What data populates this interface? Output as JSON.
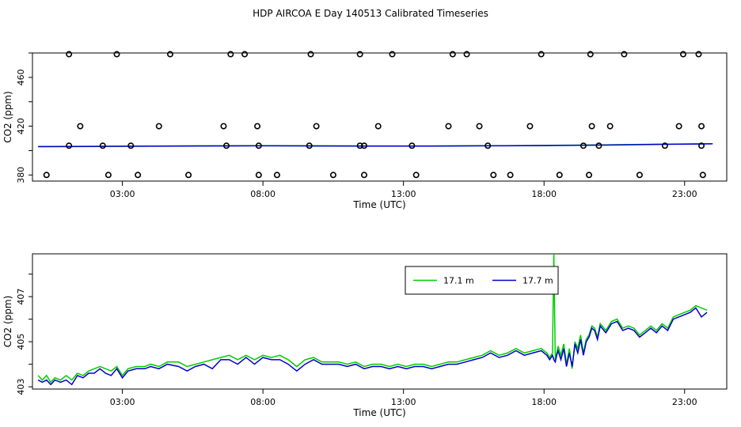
{
  "title": "HDP AIRCOA E  Day 140513  Calibrated Timeseries",
  "chart_data": [
    {
      "type": "scatter",
      "xlabel": "Time (UTC)",
      "ylabel": "CO2 (ppm)",
      "x_ticks": [
        "03:00",
        "08:00",
        "13:00",
        "18:00",
        "23:00"
      ],
      "x_tick_values": [
        3,
        8,
        13,
        18,
        23
      ],
      "y_ticks": [
        "380",
        "420",
        "460"
      ],
      "y_tick_values": [
        380,
        420,
        460
      ],
      "xlim": [
        -0.2,
        24.5
      ],
      "ylim": [
        375,
        480
      ],
      "top_level": 479,
      "upper_level": 420,
      "mid_level": 404,
      "low_level": 380,
      "cal_points_top": [
        1.1,
        2.8,
        4.7,
        6.85,
        7.35,
        9.7,
        11.45,
        12.6,
        14.75,
        15.25,
        17.9,
        19.65,
        20.85,
        22.95,
        23.5
      ],
      "cal_points_upper": [
        1.5,
        4.3,
        6.6,
        7.8,
        9.9,
        12.1,
        14.6,
        15.7,
        17.5,
        19.7,
        20.35,
        22.8,
        23.6
      ],
      "cal_points_mid": [
        1.1,
        3.3,
        2.3,
        6.7,
        7.85,
        9.65,
        11.45,
        11.6,
        13.3,
        16.0,
        19.4,
        19.95,
        22.3,
        23.6
      ],
      "cal_points_low": [
        0.3,
        2.5,
        3.55,
        5.35,
        7.85,
        8.5,
        10.5,
        11.6,
        13.45,
        16.2,
        16.8,
        18.55,
        19.6,
        21.4,
        23.65
      ],
      "series": [
        {
          "name": "",
          "color": "#00cc00",
          "x": [
            0.0,
            2.0,
            4.0,
            6.0,
            8.0,
            10.0,
            12.0,
            14.0,
            16.0,
            18.0,
            20.0,
            22.0,
            24.0
          ],
          "values": [
            403.3,
            403.5,
            403.7,
            403.9,
            404.0,
            403.9,
            403.8,
            403.8,
            404.0,
            404.2,
            404.6,
            405.2,
            405.6
          ]
        },
        {
          "name": "",
          "color": "#0000cc",
          "x": [
            0.0,
            2.0,
            4.0,
            6.0,
            8.0,
            10.0,
            12.0,
            14.0,
            16.0,
            18.0,
            20.0,
            22.0,
            24.0
          ],
          "values": [
            403.2,
            403.4,
            403.6,
            403.8,
            403.9,
            403.8,
            403.7,
            403.7,
            403.9,
            404.1,
            404.5,
            405.1,
            405.5
          ]
        }
      ]
    },
    {
      "type": "line",
      "xlabel": "Time (UTC)",
      "ylabel": "CO2 (ppm)",
      "x_ticks": [
        "03:00",
        "08:00",
        "13:00",
        "18:00",
        "23:00"
      ],
      "x_tick_values": [
        3,
        8,
        13,
        18,
        23
      ],
      "y_ticks": [
        "403",
        "405",
        "407"
      ],
      "y_tick_values": [
        403,
        405,
        407
      ],
      "xlim": [
        -0.2,
        24.5
      ],
      "ylim": [
        402.9,
        408.9
      ],
      "legend_position": "top-right",
      "series": [
        {
          "name": "17.1 m",
          "color": "#00cc00",
          "x": [
            0.0,
            0.15,
            0.3,
            0.45,
            0.6,
            0.8,
            1.0,
            1.2,
            1.4,
            1.6,
            1.8,
            2.0,
            2.2,
            2.4,
            2.6,
            2.8,
            3.0,
            3.2,
            3.5,
            3.8,
            4.0,
            4.3,
            4.6,
            5.0,
            5.3,
            5.6,
            5.9,
            6.2,
            6.5,
            6.8,
            7.1,
            7.4,
            7.7,
            8.0,
            8.3,
            8.6,
            8.9,
            9.2,
            9.5,
            9.8,
            10.1,
            10.4,
            10.7,
            11.0,
            11.3,
            11.6,
            11.9,
            12.2,
            12.5,
            12.8,
            13.1,
            13.4,
            13.7,
            14.0,
            14.3,
            14.6,
            14.9,
            15.2,
            15.5,
            15.8,
            16.1,
            16.4,
            16.7,
            17.0,
            17.3,
            17.6,
            17.9,
            18.1,
            18.2,
            18.3,
            18.35,
            18.4,
            18.45,
            18.5,
            18.6,
            18.7,
            18.8,
            18.9,
            19.0,
            19.1,
            19.2,
            19.3,
            19.4,
            19.5,
            19.6,
            19.7,
            19.8,
            19.9,
            20.0,
            20.2,
            20.4,
            20.6,
            20.8,
            21.0,
            21.2,
            21.4,
            21.6,
            21.8,
            22.0,
            22.2,
            22.4,
            22.6,
            22.8,
            23.0,
            23.2,
            23.4,
            23.6,
            23.8
          ],
          "values": [
            403.5,
            403.3,
            403.5,
            403.2,
            403.4,
            403.3,
            403.5,
            403.3,
            403.6,
            403.5,
            403.7,
            403.8,
            403.9,
            403.8,
            403.7,
            403.9,
            403.5,
            403.8,
            403.9,
            403.9,
            404.0,
            403.9,
            404.1,
            404.1,
            403.9,
            404.0,
            404.1,
            404.2,
            404.3,
            404.4,
            404.2,
            404.4,
            404.2,
            404.4,
            404.3,
            404.4,
            404.2,
            403.9,
            404.2,
            404.3,
            404.1,
            404.1,
            404.1,
            404.0,
            404.1,
            403.9,
            404.0,
            404.0,
            403.9,
            404.0,
            403.9,
            404.0,
            404.0,
            403.9,
            404.0,
            404.1,
            404.1,
            404.2,
            404.3,
            404.4,
            404.6,
            404.4,
            404.5,
            404.7,
            404.5,
            404.6,
            404.7,
            404.5,
            404.3,
            404.5,
            408.9,
            404.2,
            404.5,
            404.8,
            404.4,
            404.9,
            404.0,
            404.7,
            403.8,
            405.0,
            404.7,
            405.3,
            404.5,
            405.1,
            405.3,
            405.7,
            405.6,
            405.2,
            405.8,
            405.5,
            405.9,
            406.0,
            405.6,
            405.7,
            405.6,
            405.3,
            405.5,
            405.7,
            405.5,
            405.8,
            405.6,
            406.1,
            406.2,
            406.3,
            406.4,
            406.6,
            406.5,
            406.4
          ]
        },
        {
          "name": "17.7 m",
          "color": "#0000cc",
          "x": [
            0.0,
            0.15,
            0.3,
            0.45,
            0.6,
            0.8,
            1.0,
            1.2,
            1.4,
            1.6,
            1.8,
            2.0,
            2.2,
            2.4,
            2.6,
            2.8,
            3.0,
            3.2,
            3.5,
            3.8,
            4.0,
            4.3,
            4.6,
            5.0,
            5.3,
            5.6,
            5.9,
            6.2,
            6.5,
            6.8,
            7.1,
            7.4,
            7.7,
            8.0,
            8.3,
            8.6,
            8.9,
            9.2,
            9.5,
            9.8,
            10.1,
            10.4,
            10.7,
            11.0,
            11.3,
            11.6,
            11.9,
            12.2,
            12.5,
            12.8,
            13.1,
            13.4,
            13.7,
            14.0,
            14.3,
            14.6,
            14.9,
            15.2,
            15.5,
            15.8,
            16.1,
            16.4,
            16.7,
            17.0,
            17.3,
            17.6,
            17.9,
            18.1,
            18.2,
            18.3,
            18.35,
            18.4,
            18.45,
            18.5,
            18.6,
            18.7,
            18.8,
            18.9,
            19.0,
            19.1,
            19.2,
            19.3,
            19.4,
            19.5,
            19.6,
            19.7,
            19.8,
            19.9,
            20.0,
            20.2,
            20.4,
            20.6,
            20.8,
            21.0,
            21.2,
            21.4,
            21.6,
            21.8,
            22.0,
            22.2,
            22.4,
            22.6,
            22.8,
            23.0,
            23.2,
            23.4,
            23.6,
            23.8
          ],
          "values": [
            403.3,
            403.2,
            403.3,
            403.1,
            403.3,
            403.2,
            403.3,
            403.1,
            403.5,
            403.4,
            403.6,
            403.6,
            403.8,
            403.6,
            403.5,
            403.8,
            403.4,
            403.7,
            403.8,
            403.8,
            403.9,
            403.8,
            404.0,
            403.9,
            403.7,
            403.9,
            404.0,
            403.8,
            404.2,
            404.2,
            404.0,
            404.3,
            404.0,
            404.3,
            404.2,
            404.2,
            404.0,
            403.7,
            404.0,
            404.2,
            404.0,
            404.0,
            404.0,
            403.9,
            404.0,
            403.8,
            403.9,
            403.9,
            403.8,
            403.9,
            403.8,
            403.9,
            403.9,
            403.8,
            403.9,
            404.0,
            404.0,
            404.1,
            404.2,
            404.3,
            404.5,
            404.3,
            404.4,
            404.6,
            404.4,
            404.5,
            404.6,
            404.4,
            404.2,
            404.4,
            404.2,
            404.1,
            404.4,
            404.6,
            404.2,
            404.7,
            403.9,
            404.5,
            403.9,
            404.9,
            404.5,
            405.1,
            404.4,
            405.0,
            405.2,
            405.6,
            405.5,
            405.1,
            405.7,
            405.4,
            405.8,
            405.9,
            405.5,
            405.6,
            405.5,
            405.2,
            405.4,
            405.6,
            405.4,
            405.7,
            405.5,
            406.0,
            406.1,
            406.2,
            406.3,
            406.5,
            406.1,
            406.3
          ]
        }
      ]
    }
  ]
}
